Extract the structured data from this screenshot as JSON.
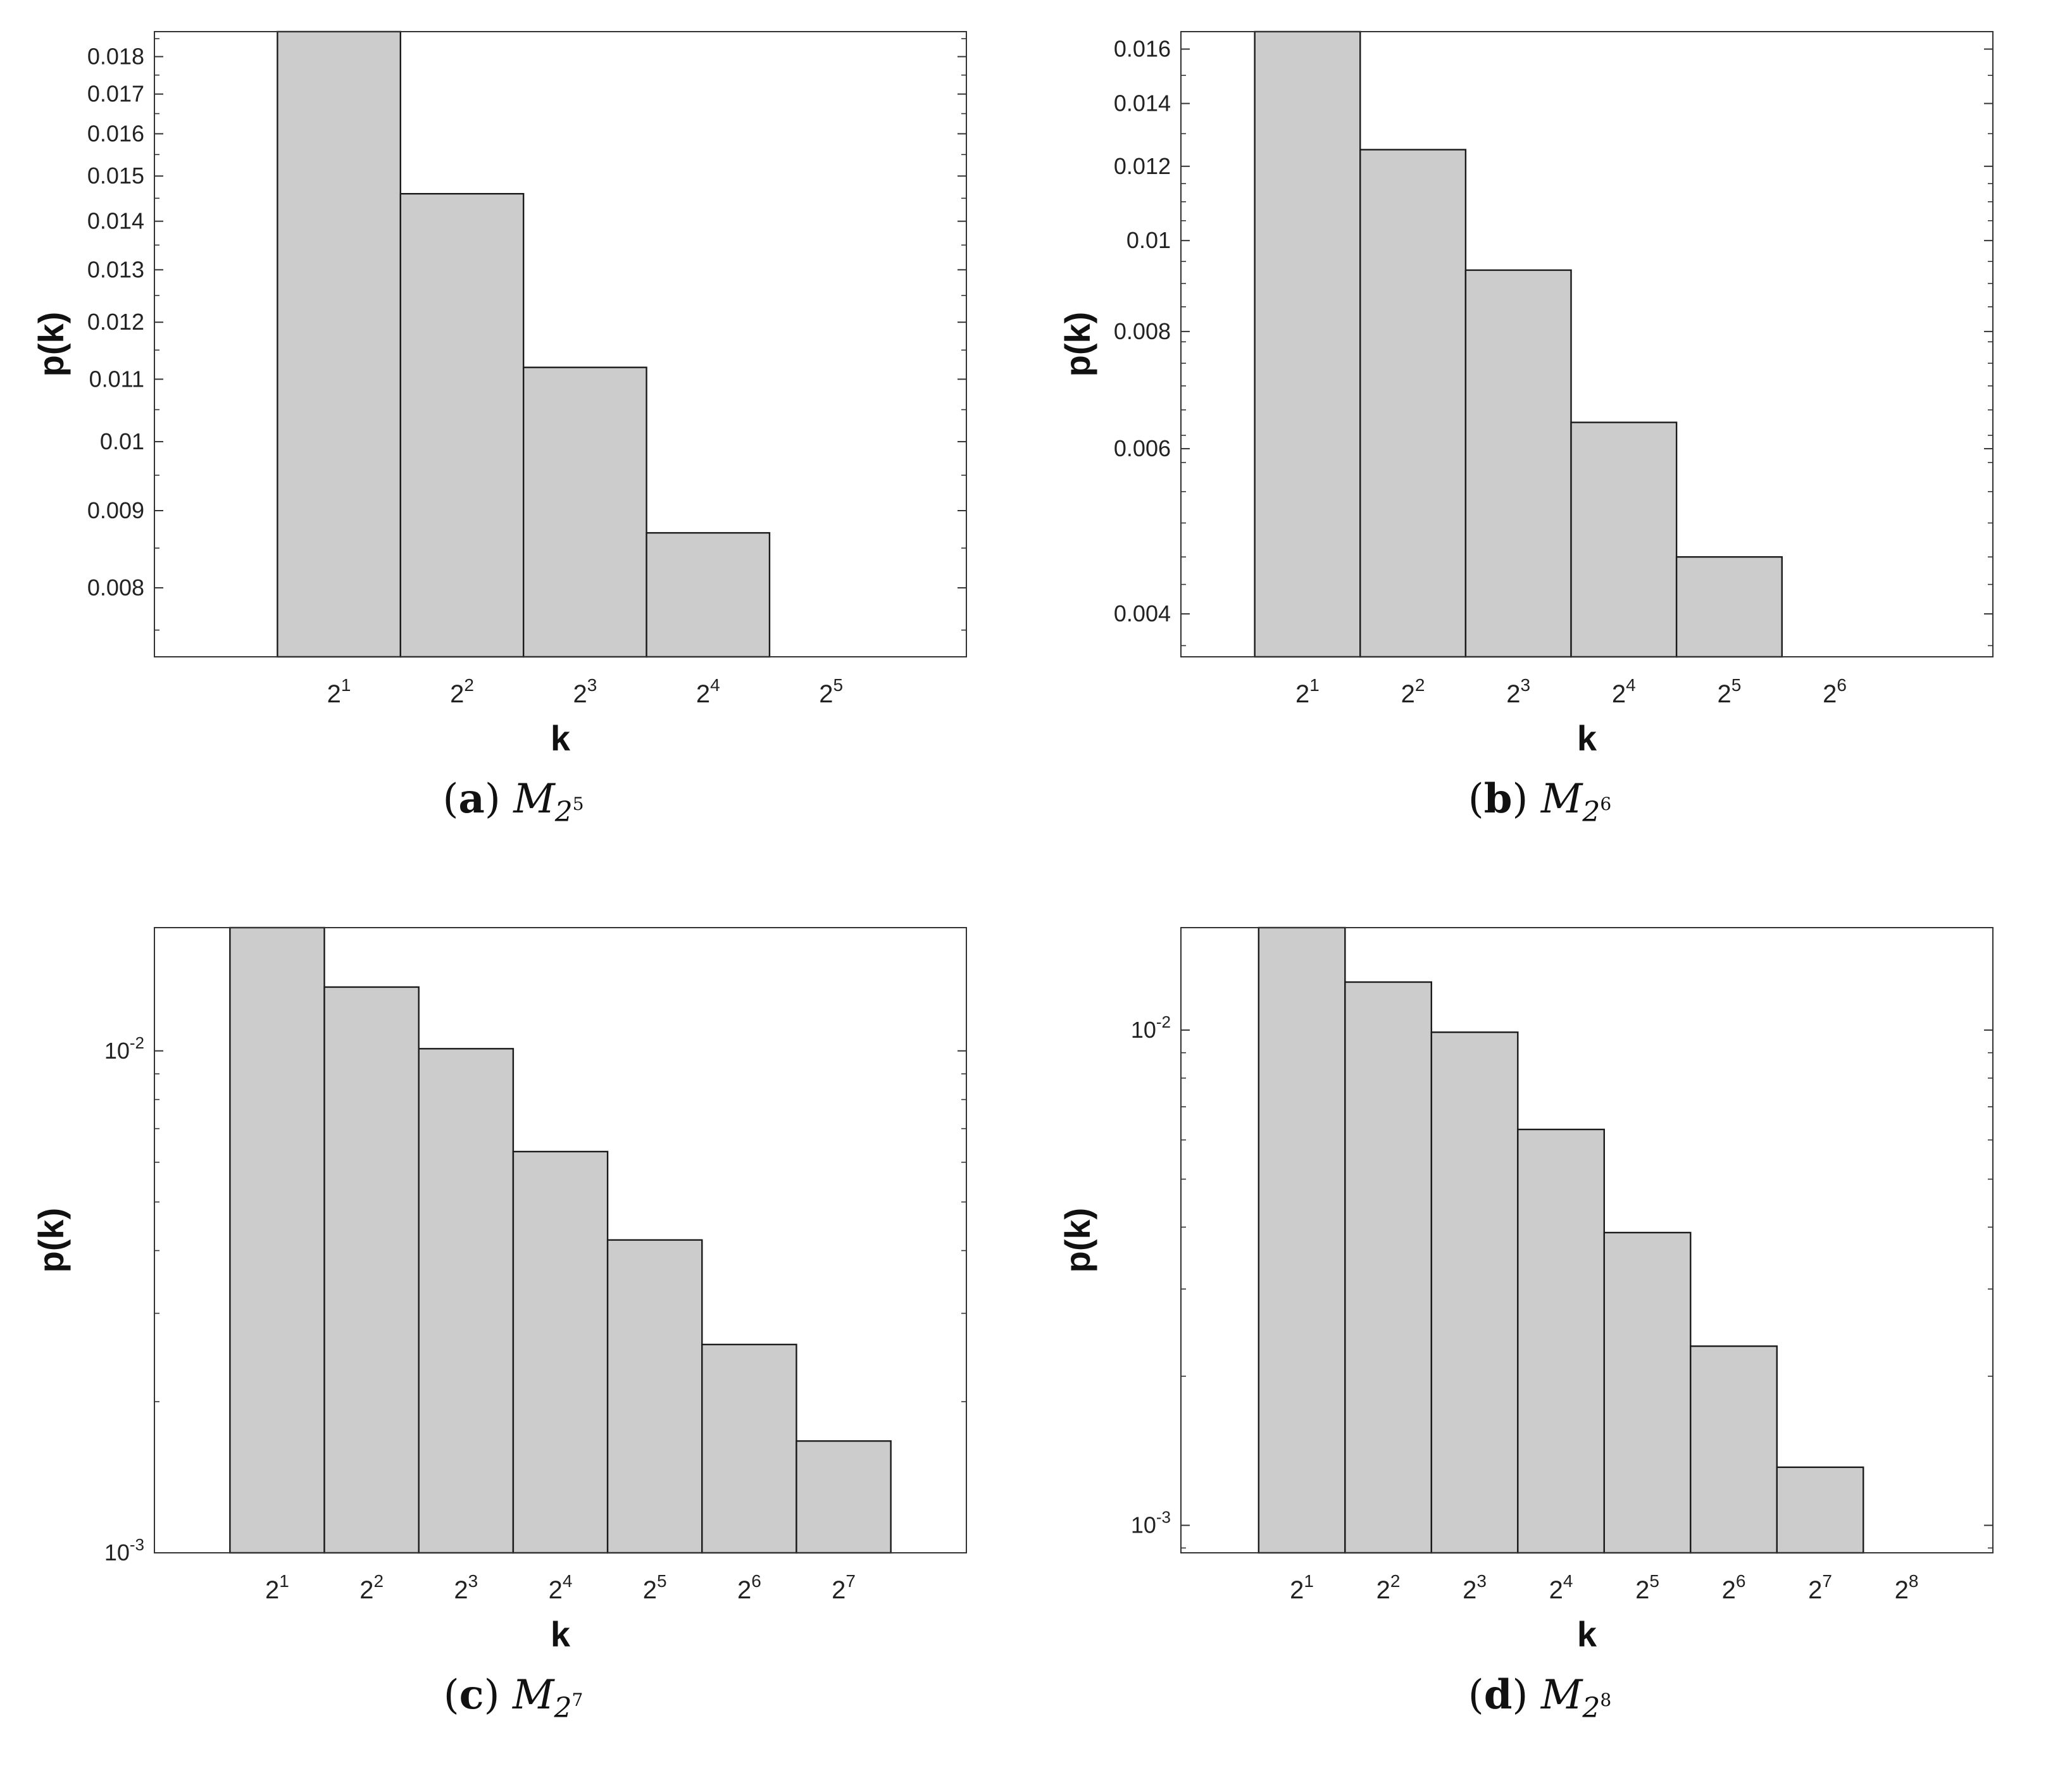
{
  "colors": {
    "bar_fill": "#cccccc",
    "bar_stroke": "#1a1a1a",
    "axis": "#333333",
    "text": "#222222"
  },
  "chart_data": [
    {
      "type": "bar",
      "caption": {
        "letter": "a",
        "label": "M",
        "sub_base": "2",
        "sub_exp": "5"
      },
      "xlabel": "k",
      "ylabel": "p(k)",
      "x_exponents": [
        "1",
        "2",
        "3",
        "4",
        "5"
      ],
      "categories": [
        "2^1",
        "2^2",
        "2^3",
        "2^4",
        "2^5"
      ],
      "values": [
        0.0187,
        0.0146,
        0.0112,
        0.0087,
        0
      ],
      "yscale": "log",
      "ylim": [
        0.0072,
        0.0187
      ],
      "yticks": [
        {
          "value": 0.008,
          "label": "0.008"
        },
        {
          "value": 0.009,
          "label": "0.009"
        },
        {
          "value": 0.01,
          "label": "0.01"
        },
        {
          "value": 0.011,
          "label": "0.011"
        },
        {
          "value": 0.012,
          "label": "0.012"
        },
        {
          "value": 0.013,
          "label": "0.013"
        },
        {
          "value": 0.014,
          "label": "0.014"
        },
        {
          "value": 0.015,
          "label": "0.015"
        },
        {
          "value": 0.016,
          "label": "0.016"
        },
        {
          "value": 0.017,
          "label": "0.017"
        },
        {
          "value": 0.018,
          "label": "0.018"
        }
      ],
      "minor_ticks": [
        0.0075,
        0.0085,
        0.0095,
        0.0105,
        0.0115,
        0.0125,
        0.0135,
        0.0145,
        0.0155,
        0.0165,
        0.0175,
        0.0185
      ],
      "xlim_exp": [
        -0.5,
        6.1
      ]
    },
    {
      "type": "bar",
      "caption": {
        "letter": "b",
        "label": "M",
        "sub_base": "2",
        "sub_exp": "6"
      },
      "xlabel": "k",
      "ylabel": "p(k)",
      "x_exponents": [
        "1",
        "2",
        "3",
        "4",
        "5",
        "6"
      ],
      "categories": [
        "2^1",
        "2^2",
        "2^3",
        "2^4",
        "2^5",
        "2^6"
      ],
      "values": [
        0.0167,
        0.0125,
        0.0093,
        0.0064,
        0.0046,
        0
      ],
      "yscale": "log",
      "ylim": [
        0.0036,
        0.0167
      ],
      "yticks": [
        {
          "value": 0.004,
          "label": "0.004"
        },
        {
          "value": 0.006,
          "label": "0.006"
        },
        {
          "value": 0.008,
          "label": "0.008"
        },
        {
          "value": 0.01,
          "label": "0.01"
        },
        {
          "value": 0.012,
          "label": "0.012"
        },
        {
          "value": 0.014,
          "label": "0.014"
        },
        {
          "value": 0.016,
          "label": "0.016"
        }
      ],
      "minor_ticks": [
        0.0037,
        0.0043,
        0.0046,
        0.005,
        0.0054,
        0.0058,
        0.0062,
        0.0066,
        0.007,
        0.0074,
        0.0078,
        0.0085,
        0.009,
        0.0095,
        0.0105,
        0.011,
        0.0115,
        0.013,
        0.015
      ],
      "xlim_exp": [
        -0.2,
        7.5
      ]
    },
    {
      "type": "bar",
      "caption": {
        "letter": "c",
        "label": "M",
        "sub_base": "2",
        "sub_exp": "7"
      },
      "xlabel": "k",
      "ylabel": "p(k)",
      "x_exponents": [
        "1",
        "2",
        "3",
        "4",
        "5",
        "6",
        "7"
      ],
      "categories": [
        "2^1",
        "2^2",
        "2^3",
        "2^4",
        "2^5",
        "2^6",
        "2^7"
      ],
      "values": [
        0.0176,
        0.0134,
        0.0101,
        0.0063,
        0.0042,
        0.0026,
        0.00167
      ],
      "yscale": "log",
      "ylim": [
        0.001,
        0.0176
      ],
      "yticks": [
        {
          "value": 0.001,
          "base": "10",
          "exp": "-3"
        },
        {
          "value": 0.01,
          "base": "10",
          "exp": "-2"
        }
      ],
      "minor_ticks": [
        0.002,
        0.003,
        0.004,
        0.005,
        0.006,
        0.007,
        0.008,
        0.009
      ],
      "xlim_exp": [
        -0.3,
        8.3
      ]
    },
    {
      "type": "bar",
      "caption": {
        "letter": "d",
        "label": "M",
        "sub_base": "2",
        "sub_exp": "8"
      },
      "xlabel": "k",
      "ylabel": "p(k)",
      "x_exponents": [
        "1",
        "2",
        "3",
        "4",
        "5",
        "6",
        "7",
        "8"
      ],
      "categories": [
        "2^1",
        "2^2",
        "2^3",
        "2^4",
        "2^5",
        "2^6",
        "2^7",
        "2^8"
      ],
      "values": [
        0.0161,
        0.0125,
        0.0099,
        0.0063,
        0.0039,
        0.0023,
        0.00131,
        0
      ],
      "yscale": "log",
      "ylim": [
        0.00088,
        0.0161
      ],
      "yticks": [
        {
          "value": 0.001,
          "base": "10",
          "exp": "-3"
        },
        {
          "value": 0.01,
          "base": "10",
          "exp": "-2"
        }
      ],
      "minor_ticks": [
        0.0009,
        0.002,
        0.003,
        0.004,
        0.005,
        0.006,
        0.007,
        0.008,
        0.009
      ],
      "xlim_exp": [
        -0.4,
        9.0
      ]
    }
  ]
}
